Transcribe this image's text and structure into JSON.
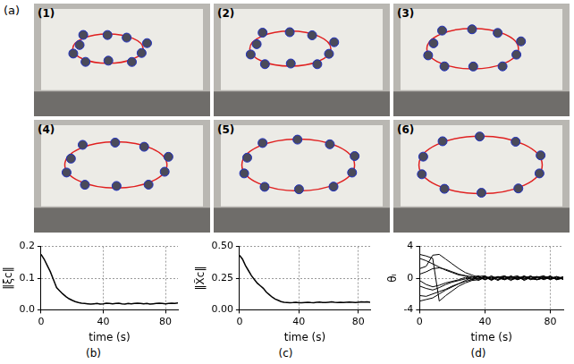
{
  "figure": {
    "panel_label": "(a)",
    "frames": [
      "(1)",
      "(2)",
      "(3)",
      "(4)",
      "(5)",
      "(6)"
    ]
  },
  "chart_data": [
    {
      "type": "line",
      "panel_label": "(b)",
      "xlabel": "time (s)",
      "ylabel": "‖ξc‖",
      "color": "#000000",
      "grid": true,
      "xlim": [
        0,
        88
      ],
      "xticks": [
        0,
        40,
        80
      ],
      "ylim": [
        0,
        0.2
      ],
      "yticks": [
        {
          "value": 0,
          "label": "0.0"
        },
        0.1,
        0.2
      ],
      "x": [
        0,
        2,
        4,
        6,
        8,
        10,
        12,
        14,
        16,
        18,
        20,
        22,
        24,
        26,
        28,
        30,
        32,
        34,
        36,
        38,
        40,
        42,
        44,
        46,
        48,
        50,
        52,
        54,
        56,
        58,
        60,
        62,
        64,
        66,
        68,
        70,
        72,
        74,
        76,
        78,
        80,
        82,
        84,
        86,
        88
      ],
      "series": [
        {
          "values": [
            0.175,
            0.16,
            0.14,
            0.12,
            0.095,
            0.07,
            0.06,
            0.05,
            0.042,
            0.035,
            0.03,
            0.026,
            0.023,
            0.021,
            0.02,
            0.019,
            0.018,
            0.019,
            0.02,
            0.018,
            0.019,
            0.021,
            0.02,
            0.019,
            0.02,
            0.021,
            0.019,
            0.018,
            0.02,
            0.019,
            0.02,
            0.021,
            0.02,
            0.019,
            0.02,
            0.018,
            0.019,
            0.02,
            0.021,
            0.02,
            0.019,
            0.02,
            0.021,
            0.02,
            0.022
          ]
        }
      ]
    },
    {
      "type": "line",
      "panel_label": "(c)",
      "xlabel": "time (s)",
      "ylabel": "‖X̃c‖",
      "color": "#000000",
      "grid": true,
      "xlim": [
        0,
        88
      ],
      "xticks": [
        0,
        40,
        80
      ],
      "ylim": [
        0,
        0.5
      ],
      "yticks": [
        {
          "value": 0,
          "label": "0.00"
        },
        0.25,
        {
          "value": 0.5,
          "label": "0.50"
        }
      ],
      "x": [
        0,
        2,
        4,
        6,
        8,
        10,
        12,
        14,
        16,
        18,
        20,
        22,
        24,
        26,
        28,
        30,
        32,
        34,
        36,
        38,
        40,
        42,
        44,
        46,
        48,
        50,
        52,
        54,
        56,
        58,
        60,
        62,
        64,
        66,
        68,
        70,
        72,
        74,
        76,
        78,
        80,
        82,
        84,
        86,
        88
      ],
      "series": [
        {
          "values": [
            0.43,
            0.4,
            0.35,
            0.31,
            0.27,
            0.24,
            0.21,
            0.19,
            0.17,
            0.14,
            0.12,
            0.1,
            0.085,
            0.075,
            0.065,
            0.06,
            0.058,
            0.055,
            0.057,
            0.06,
            0.056,
            0.055,
            0.058,
            0.06,
            0.057,
            0.056,
            0.059,
            0.061,
            0.058,
            0.057,
            0.06,
            0.062,
            0.059,
            0.058,
            0.06,
            0.057,
            0.059,
            0.061,
            0.06,
            0.058,
            0.06,
            0.062,
            0.061,
            0.063,
            0.06
          ]
        }
      ]
    },
    {
      "type": "line",
      "panel_label": "(d)",
      "xlabel": "time (s)",
      "ylabel": "θᵢ",
      "color": "#000000",
      "grid": true,
      "xlim": [
        0,
        88
      ],
      "xticks": [
        0,
        40,
        80
      ],
      "ylim": [
        -4,
        4
      ],
      "yticks": [
        -4,
        0,
        4
      ],
      "x": [
        0,
        4,
        8,
        12,
        16,
        20,
        24,
        28,
        32,
        36,
        40,
        44,
        48,
        52,
        56,
        60,
        64,
        68,
        72,
        76,
        80,
        84,
        88
      ],
      "series": [
        {
          "values": [
            3,
            2.8,
            2.5,
            -2.9,
            -2.2,
            -1.6,
            -1,
            -0.6,
            -0.3,
            -0.2,
            0.1,
            -0.2,
            0.2,
            -0.1,
            0.3,
            -0.2,
            0.1,
            0.2,
            -0.2,
            0.1,
            -0.1,
            0.2,
            0
          ]
        },
        {
          "values": [
            -2.9,
            -2.7,
            -2.5,
            -2,
            -1.5,
            -1.1,
            -0.7,
            -0.4,
            -0.2,
            0.2,
            -0.1,
            0.3,
            -0.2,
            0.1,
            -0.3,
            0.2,
            0,
            -0.1,
            0.2,
            -0.2,
            0.1,
            -0.1,
            0.1
          ]
        },
        {
          "values": [
            2.5,
            2.2,
            1.8,
            1.4,
            1,
            0.7,
            0.4,
            0.3,
            0.2,
            -0.1,
            0.2,
            -0.2,
            0.1,
            0.3,
            -0.1,
            0.1,
            -0.2,
            0.2,
            0,
            -0.1,
            0.3,
            -0.2,
            0.1
          ]
        },
        {
          "values": [
            -2.2,
            -2.3,
            -2,
            -1.7,
            -1.4,
            -1,
            -0.7,
            -0.3,
            0.1,
            0.3,
            -0.2,
            0.1,
            -0.3,
            0.2,
            0.1,
            -0.2,
            0.2,
            -0.1,
            0.1,
            0.2,
            -0.2,
            0.1,
            -0.1
          ]
        },
        {
          "values": [
            1.2,
            1.5,
            2.9,
            3,
            2.4,
            1.8,
            1.2,
            0.7,
            0.4,
            0.1,
            -0.2,
            0.2,
            0,
            -0.2,
            0.2,
            0.1,
            -0.1,
            0.3,
            -0.2,
            0,
            0.2,
            -0.1,
            0.2
          ]
        },
        {
          "values": [
            -1,
            -1.3,
            -1.5,
            -1.2,
            -0.8,
            -0.5,
            -0.3,
            -0.1,
            0.2,
            -0.3,
            0.1,
            0,
            0.2,
            -0.2,
            0.1,
            0.3,
            -0.3,
            0.1,
            0.2,
            -0.1,
            0,
            0.2,
            -0.2
          ]
        },
        {
          "values": [
            0.5,
            0.8,
            1.2,
            1.3,
            1.1,
            0.8,
            0.5,
            0.3,
            -0.1,
            0.2,
            0.3,
            -0.1,
            0.1,
            0.2,
            -0.2,
            0,
            0.2,
            -0.2,
            0.1,
            0.3,
            -0.1,
            0,
            0.1
          ]
        },
        {
          "values": [
            -0.3,
            -0.8,
            -1.1,
            -0.9,
            -0.6,
            -0.4,
            -0.2,
            0.1,
            -0.2,
            0,
            0.2,
            -0.3,
            0.2,
            -0.1,
            0.2,
            -0.1,
            0.3,
            -0.1,
            -0.2,
            0.1,
            0.2,
            -0.2,
            0
          ]
        }
      ]
    }
  ]
}
